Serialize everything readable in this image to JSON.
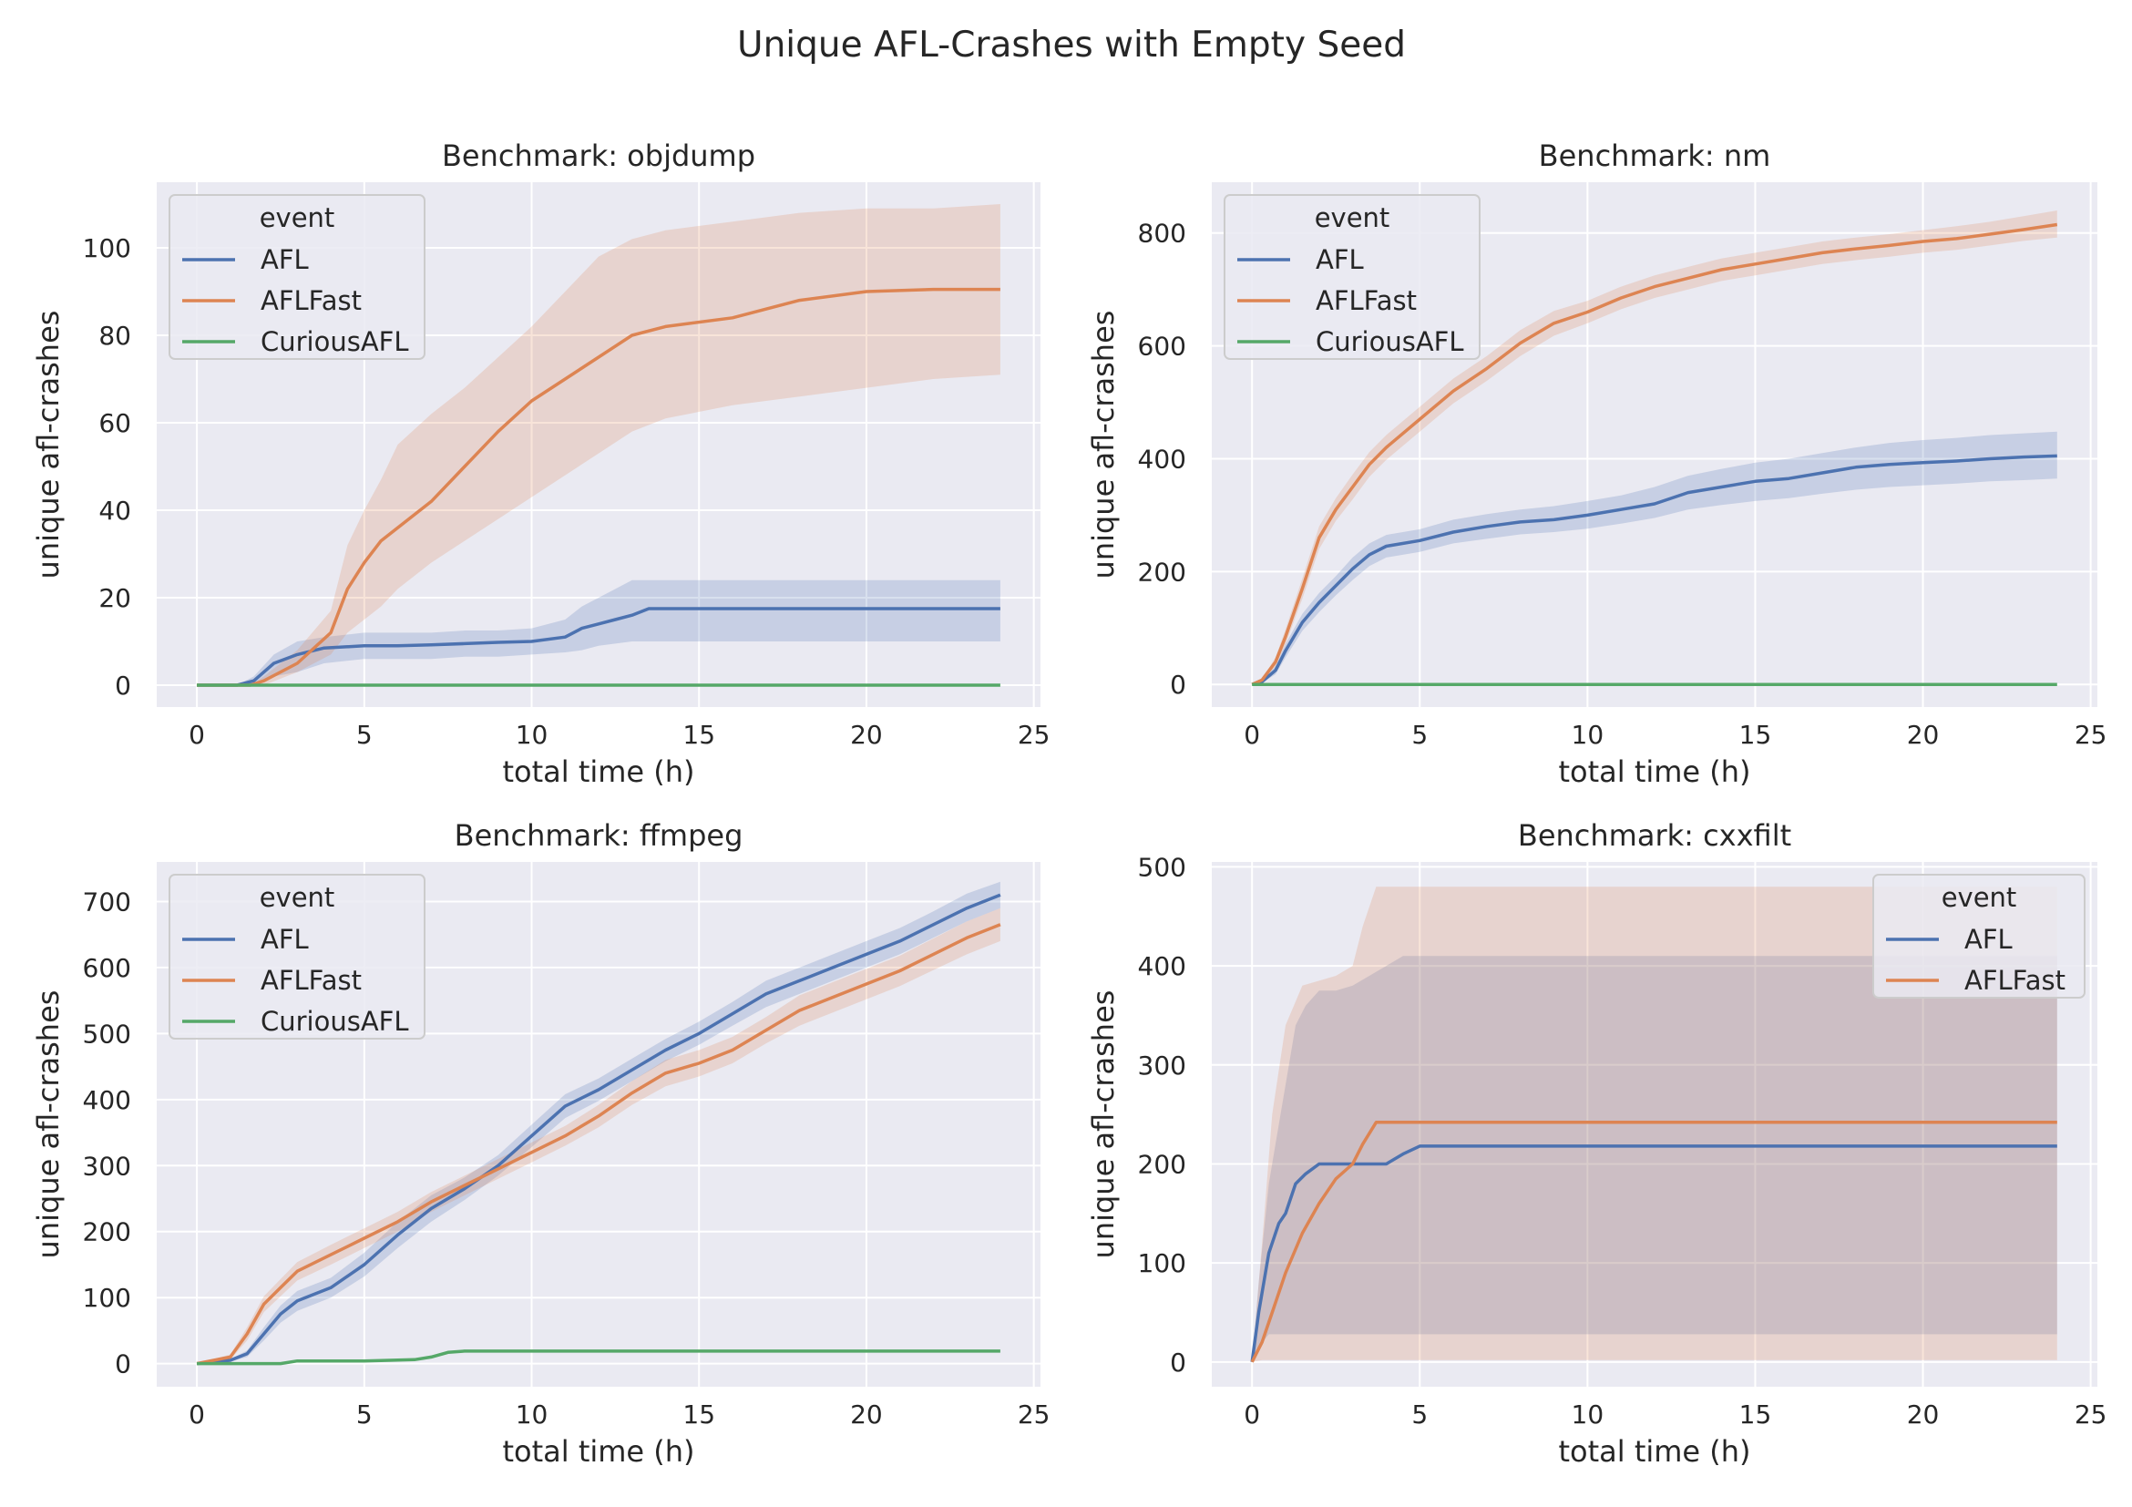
{
  "figure_title": "Unique AFL-Crashes with Empty Seed",
  "colors": {
    "AFL": "#4c72b0",
    "AFLFast": "#dd8452",
    "CuriousAFL": "#55a868",
    "axes_bg": "#eaeaf2",
    "grid": "#ffffff"
  },
  "chart_data": [
    {
      "type": "line",
      "title": "Benchmark: objdump",
      "xlabel": "total time (h)",
      "ylabel": "unique afl-crashes",
      "xlim": [
        -1.2,
        25.2
      ],
      "ylim": [
        -5,
        115
      ],
      "xticks": [
        0,
        5,
        10,
        15,
        20,
        25
      ],
      "yticks": [
        0,
        20,
        40,
        60,
        80,
        100
      ],
      "grid": true,
      "legend": {
        "title": "event",
        "placement": "upper left",
        "entries": [
          "AFL",
          "AFLFast",
          "CuriousAFL"
        ]
      },
      "series": [
        {
          "name": "AFL",
          "x": [
            0,
            1.2,
            1.7,
            2.3,
            3,
            3.8,
            5,
            6,
            7,
            8,
            9,
            10,
            11,
            11.5,
            12,
            12.5,
            13,
            13.5,
            14,
            15,
            18,
            20,
            24
          ],
          "y": [
            0,
            0,
            1,
            5,
            7,
            8.5,
            9,
            9,
            9.2,
            9.5,
            9.8,
            10,
            11,
            13,
            14,
            15,
            16,
            17.5,
            17.5,
            17.5,
            17.5,
            17.5,
            17.5
          ],
          "low": [
            0,
            0,
            0,
            2,
            3,
            5,
            6,
            6,
            6,
            6.5,
            6.5,
            7,
            7.5,
            8,
            9,
            9.5,
            10,
            10,
            10,
            10,
            10,
            10,
            10
          ],
          "high": [
            0,
            0,
            2,
            7,
            10,
            11,
            12,
            12,
            12,
            12.5,
            12.5,
            13,
            15,
            18,
            20,
            22,
            24,
            24,
            24,
            24,
            24,
            24,
            24
          ]
        },
        {
          "name": "AFLFast",
          "x": [
            0,
            1.6,
            2,
            3,
            4,
            4.5,
            5,
            5.5,
            6,
            7,
            8,
            9,
            10,
            11,
            12,
            13,
            14,
            16,
            18,
            20,
            22,
            24
          ],
          "y": [
            0,
            0,
            1,
            5,
            12,
            22,
            28,
            33,
            36,
            42,
            50,
            58,
            65,
            70,
            75,
            80,
            82,
            84,
            88,
            90,
            90.5,
            90.5
          ],
          "low": [
            0,
            0,
            0,
            3,
            7,
            12,
            15,
            18,
            22,
            28,
            33,
            38,
            43,
            48,
            53,
            58,
            61,
            64,
            66,
            68,
            70,
            71
          ],
          "high": [
            0,
            0,
            2,
            8,
            17,
            32,
            40,
            47,
            55,
            62,
            68,
            75,
            82,
            90,
            98,
            102,
            104,
            106,
            108,
            109,
            109,
            110
          ]
        },
        {
          "name": "CuriousAFL",
          "x": [
            0,
            24
          ],
          "y": [
            0,
            0
          ],
          "low": [
            0,
            0
          ],
          "high": [
            0,
            0
          ]
        }
      ]
    },
    {
      "type": "line",
      "title": "Benchmark: nm",
      "xlabel": "total time (h)",
      "ylabel": "unique afl-crashes",
      "xlim": [
        -1.2,
        25.2
      ],
      "ylim": [
        -40,
        890
      ],
      "xticks": [
        0,
        5,
        10,
        15,
        20,
        25
      ],
      "yticks": [
        0,
        200,
        400,
        600,
        800
      ],
      "grid": true,
      "legend": {
        "title": "event",
        "placement": "upper left",
        "entries": [
          "AFL",
          "AFLFast",
          "CuriousAFL"
        ]
      },
      "series": [
        {
          "name": "AFL",
          "x": [
            0,
            0.3,
            0.7,
            1,
            1.5,
            2,
            2.5,
            3,
            3.5,
            4,
            5,
            6,
            7,
            8,
            9,
            10,
            11,
            12,
            13,
            14,
            15,
            16,
            17,
            18,
            19,
            20,
            21,
            22,
            23,
            24
          ],
          "y": [
            0,
            5,
            25,
            60,
            110,
            145,
            175,
            205,
            230,
            245,
            255,
            270,
            280,
            288,
            292,
            300,
            310,
            320,
            340,
            350,
            360,
            365,
            375,
            385,
            390,
            393,
            396,
            400,
            403,
            405
          ],
          "low": [
            0,
            3,
            18,
            48,
            95,
            128,
            158,
            185,
            210,
            225,
            235,
            250,
            258,
            266,
            270,
            276,
            285,
            295,
            310,
            318,
            325,
            330,
            338,
            345,
            350,
            353,
            356,
            360,
            362,
            365
          ],
          "high": [
            0,
            7,
            32,
            72,
            125,
            162,
            192,
            225,
            250,
            265,
            275,
            292,
            302,
            310,
            316,
            325,
            335,
            350,
            370,
            382,
            393,
            400,
            410,
            420,
            428,
            433,
            437,
            442,
            445,
            448
          ]
        },
        {
          "name": "AFLFast",
          "x": [
            0,
            0.3,
            0.7,
            1,
            1.5,
            2,
            2.5,
            3,
            3.5,
            4,
            5,
            6,
            7,
            8,
            9,
            10,
            11,
            12,
            13,
            14,
            15,
            16,
            17,
            18,
            19,
            20,
            21,
            22,
            23,
            24
          ],
          "y": [
            0,
            8,
            40,
            85,
            170,
            260,
            310,
            350,
            390,
            420,
            470,
            520,
            560,
            605,
            640,
            660,
            685,
            705,
            720,
            735,
            745,
            755,
            765,
            772,
            778,
            785,
            790,
            798,
            806,
            815
          ],
          "low": [
            0,
            6,
            32,
            72,
            152,
            240,
            290,
            328,
            368,
            398,
            448,
            498,
            538,
            582,
            618,
            640,
            665,
            685,
            700,
            715,
            725,
            735,
            745,
            752,
            758,
            765,
            770,
            778,
            786,
            792
          ],
          "high": [
            0,
            10,
            48,
            98,
            188,
            280,
            330,
            372,
            412,
            442,
            492,
            542,
            582,
            628,
            662,
            680,
            705,
            725,
            740,
            755,
            765,
            775,
            785,
            792,
            798,
            805,
            812,
            820,
            830,
            840
          ]
        },
        {
          "name": "CuriousAFL",
          "x": [
            0,
            24
          ],
          "y": [
            0,
            0
          ],
          "low": [
            0,
            0
          ],
          "high": [
            0,
            0
          ]
        }
      ]
    },
    {
      "type": "line",
      "title": "Benchmark: ffmpeg",
      "xlabel": "total time (h)",
      "ylabel": "unique afl-crashes",
      "xlim": [
        -1.2,
        25.2
      ],
      "ylim": [
        -35,
        760
      ],
      "xticks": [
        0,
        5,
        10,
        15,
        20,
        25
      ],
      "yticks": [
        0,
        100,
        200,
        300,
        400,
        500,
        600,
        700
      ],
      "grid": true,
      "legend": {
        "title": "event",
        "placement": "upper left",
        "entries": [
          "AFL",
          "AFLFast",
          "CuriousAFL"
        ]
      },
      "series": [
        {
          "name": "AFL",
          "x": [
            0,
            1,
            1.5,
            2,
            2.5,
            3,
            4,
            5,
            6,
            7,
            8,
            9,
            10,
            11,
            12,
            13,
            14,
            15,
            16,
            17,
            18,
            19,
            20,
            21,
            22,
            23,
            24
          ],
          "y": [
            0,
            5,
            15,
            45,
            75,
            95,
            115,
            150,
            195,
            235,
            265,
            300,
            345,
            390,
            415,
            445,
            475,
            500,
            530,
            560,
            580,
            600,
            620,
            640,
            665,
            690,
            710
          ],
          "low": [
            0,
            3,
            10,
            35,
            62,
            80,
            100,
            132,
            175,
            215,
            248,
            285,
            328,
            372,
            398,
            428,
            458,
            483,
            512,
            540,
            560,
            580,
            600,
            620,
            645,
            670,
            690
          ],
          "high": [
            0,
            7,
            20,
            55,
            88,
            110,
            130,
            168,
            215,
            255,
            282,
            316,
            362,
            408,
            432,
            462,
            492,
            518,
            548,
            580,
            600,
            620,
            640,
            660,
            685,
            712,
            730
          ]
        },
        {
          "name": "AFLFast",
          "x": [
            0,
            1,
            1.5,
            2,
            2.5,
            3,
            4,
            5,
            6,
            7,
            8,
            9,
            10,
            11,
            12,
            13,
            14,
            15,
            16,
            17,
            18,
            19,
            20,
            21,
            22,
            23,
            24
          ],
          "y": [
            0,
            10,
            45,
            90,
            115,
            140,
            165,
            190,
            215,
            245,
            270,
            295,
            320,
            345,
            375,
            410,
            440,
            455,
            475,
            505,
            535,
            555,
            575,
            595,
            620,
            645,
            665
          ],
          "low": [
            0,
            6,
            35,
            78,
            102,
            126,
            150,
            175,
            200,
            230,
            255,
            280,
            305,
            330,
            358,
            392,
            420,
            435,
            455,
            485,
            512,
            532,
            552,
            572,
            596,
            620,
            640
          ],
          "high": [
            0,
            14,
            55,
            102,
            128,
            154,
            180,
            205,
            230,
            260,
            285,
            310,
            335,
            360,
            392,
            428,
            460,
            475,
            495,
            525,
            558,
            578,
            598,
            618,
            644,
            670,
            690
          ]
        },
        {
          "name": "CuriousAFL",
          "x": [
            0,
            2.5,
            3,
            5,
            6.5,
            7,
            7.5,
            8,
            10,
            15,
            20,
            24
          ],
          "y": [
            0,
            0,
            4,
            4,
            6,
            10,
            17,
            19,
            19,
            19,
            19,
            19
          ],
          "low": [
            0,
            0,
            4,
            4,
            6,
            10,
            17,
            19,
            19,
            19,
            19,
            19
          ],
          "high": [
            0,
            0,
            4,
            4,
            6,
            10,
            17,
            19,
            19,
            19,
            19,
            19
          ]
        }
      ]
    },
    {
      "type": "line",
      "title": "Benchmark: cxxfilt",
      "xlabel": "total time (h)",
      "ylabel": "unique afl-crashes",
      "xlim": [
        -1.2,
        25.2
      ],
      "ylim": [
        -25,
        505
      ],
      "xticks": [
        0,
        5,
        10,
        15,
        20,
        25
      ],
      "yticks": [
        0,
        100,
        200,
        300,
        400,
        500
      ],
      "grid": true,
      "legend": {
        "title": "event",
        "placement": "upper right",
        "entries": [
          "AFL",
          "AFLFast"
        ]
      },
      "series": [
        {
          "name": "AFL",
          "x": [
            0,
            0.2,
            0.5,
            0.8,
            1,
            1.3,
            1.6,
            2,
            2.5,
            3,
            4,
            4.5,
            5,
            10,
            15,
            20,
            24
          ],
          "y": [
            0,
            50,
            110,
            140,
            150,
            180,
            190,
            200,
            200,
            200,
            200,
            210,
            218,
            218,
            218,
            218,
            218
          ],
          "low": [
            0,
            15,
            28,
            28,
            28,
            28,
            28,
            28,
            28,
            28,
            28,
            28,
            28,
            28,
            28,
            28,
            28
          ],
          "high": [
            0,
            80,
            180,
            240,
            280,
            340,
            360,
            375,
            375,
            380,
            400,
            410,
            410,
            410,
            410,
            410,
            410
          ]
        },
        {
          "name": "AFLFast",
          "x": [
            0,
            0.3,
            0.6,
            1,
            1.5,
            2,
            2.5,
            3,
            3.3,
            3.7,
            5,
            10,
            15,
            20,
            24
          ],
          "y": [
            0,
            20,
            50,
            90,
            130,
            160,
            185,
            200,
            220,
            242,
            242,
            242,
            242,
            242,
            242
          ],
          "low": [
            0,
            2,
            2,
            2,
            2,
            2,
            2,
            2,
            2,
            2,
            2,
            2,
            2,
            2,
            2
          ],
          "high": [
            0,
            120,
            250,
            340,
            380,
            385,
            390,
            400,
            440,
            480,
            480,
            480,
            480,
            480,
            480
          ]
        }
      ]
    }
  ]
}
